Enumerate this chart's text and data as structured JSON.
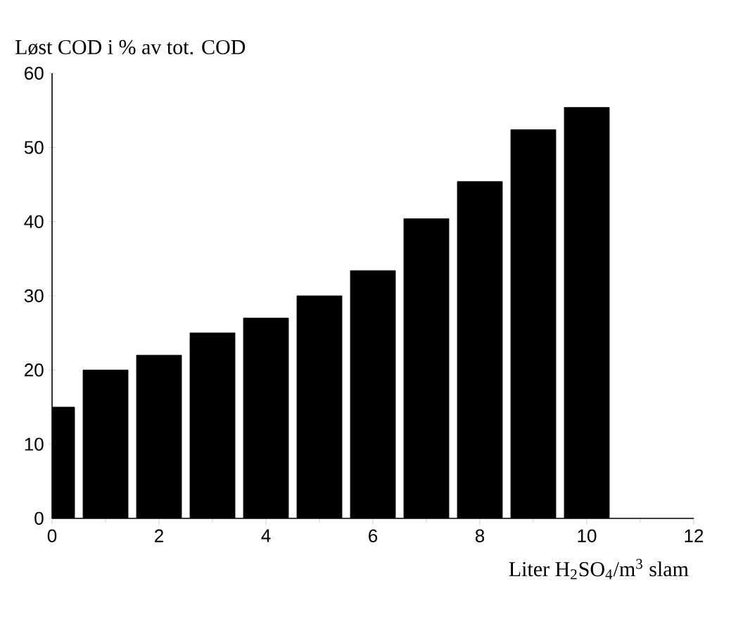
{
  "chart_data": {
    "type": "bar",
    "ylabel": "Løst COD i % av tot. COD",
    "xlabel": "Liter H$_{2}$SO$_{4}$/m$^{3}$ slam",
    "x": [
      0,
      1,
      2,
      3,
      4,
      5,
      6,
      7,
      8,
      9,
      10
    ],
    "values": [
      15,
      20,
      22,
      25,
      27,
      30,
      33.4,
      40.4,
      45.4,
      52.4,
      55.4
    ],
    "color": "#000000",
    "xlim": [
      0,
      12
    ],
    "xticks": [
      0,
      2,
      4,
      6,
      8,
      10,
      12
    ],
    "ylim": [
      0,
      60
    ],
    "yticks": [
      0,
      10,
      20,
      30,
      40,
      50,
      60
    ],
    "grid": false
  }
}
